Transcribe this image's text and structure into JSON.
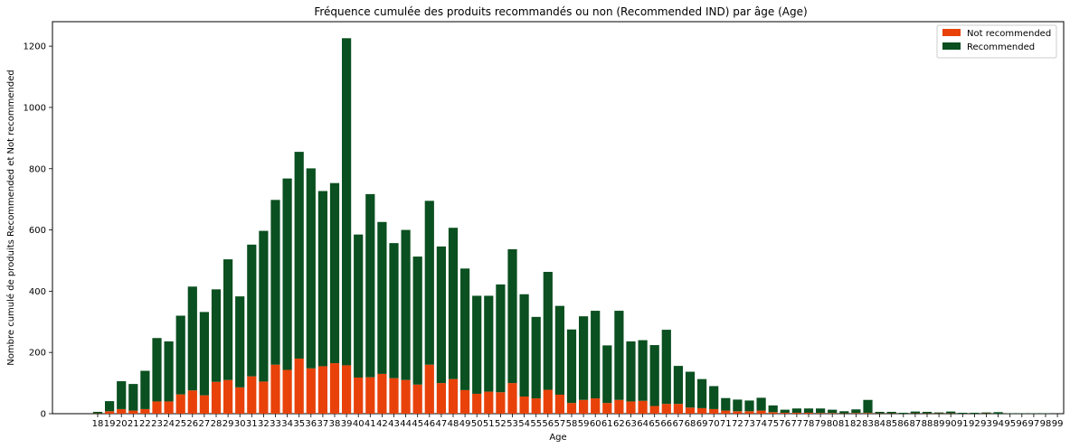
{
  "chart_data": {
    "type": "bar",
    "stacked": true,
    "title": "Fréquence cumulée des produits recommandés ou non (Recommended IND) par âge (Age)",
    "xlabel": "Age",
    "ylabel": "Nombre cumulé de produits Recommended et Not recommended",
    "ylim": [
      0,
      1280
    ],
    "yticks": [
      0,
      200,
      400,
      600,
      800,
      1000,
      1200
    ],
    "grid": false,
    "legend_position": "top-right",
    "categories": [
      "18",
      "19",
      "20",
      "21",
      "22",
      "23",
      "24",
      "25",
      "26",
      "27",
      "28",
      "29",
      "30",
      "31",
      "32",
      "33",
      "34",
      "35",
      "36",
      "37",
      "38",
      "39",
      "40",
      "41",
      "42",
      "43",
      "44",
      "45",
      "46",
      "47",
      "48",
      "49",
      "50",
      "51",
      "52",
      "53",
      "54",
      "55",
      "56",
      "57",
      "58",
      "59",
      "60",
      "61",
      "62",
      "63",
      "64",
      "65",
      "66",
      "67",
      "68",
      "69",
      "70",
      "71",
      "72",
      "73",
      "74",
      "75",
      "76",
      "77",
      "78",
      "79",
      "80",
      "81",
      "82",
      "83",
      "84",
      "85",
      "86",
      "87",
      "88",
      "89",
      "90",
      "91",
      "92",
      "93",
      "94",
      "95",
      "96",
      "97",
      "98",
      "99"
    ],
    "series": [
      {
        "name": "Not recommended",
        "color": "#e8420a",
        "values": [
          1,
          8,
          15,
          10,
          15,
          40,
          40,
          63,
          76,
          60,
          104,
          110,
          86,
          122,
          105,
          160,
          143,
          180,
          148,
          155,
          165,
          158,
          118,
          119,
          130,
          116,
          110,
          95,
          160,
          100,
          113,
          77,
          65,
          72,
          70,
          100,
          56,
          50,
          78,
          62,
          35,
          45,
          50,
          35,
          45,
          40,
          42,
          25,
          32,
          32,
          20,
          18,
          15,
          10,
          8,
          8,
          10,
          5,
          3,
          3,
          3,
          2,
          2,
          1,
          2,
          2,
          1,
          1,
          0,
          1,
          1,
          1,
          1,
          0,
          0,
          1,
          0,
          0,
          0,
          0,
          0,
          0
        ]
      },
      {
        "name": "Recommended",
        "color": "#0a5020",
        "values": [
          5,
          33,
          91,
          87,
          125,
          207,
          196,
          257,
          339,
          272,
          302,
          394,
          297,
          430,
          492,
          538,
          625,
          675,
          653,
          572,
          588,
          1068,
          467,
          598,
          496,
          441,
          490,
          418,
          535,
          446,
          494,
          397,
          320,
          313,
          352,
          437,
          334,
          266,
          385,
          290,
          240,
          273,
          286,
          188,
          291,
          196,
          198,
          199,
          242,
          124,
          117,
          95,
          75,
          41,
          38,
          35,
          42,
          22,
          10,
          14,
          14,
          15,
          11,
          7,
          12,
          43,
          5,
          5,
          3,
          6,
          5,
          3,
          6,
          3,
          3,
          3,
          5,
          1,
          1,
          1,
          1,
          0
        ]
      }
    ]
  }
}
